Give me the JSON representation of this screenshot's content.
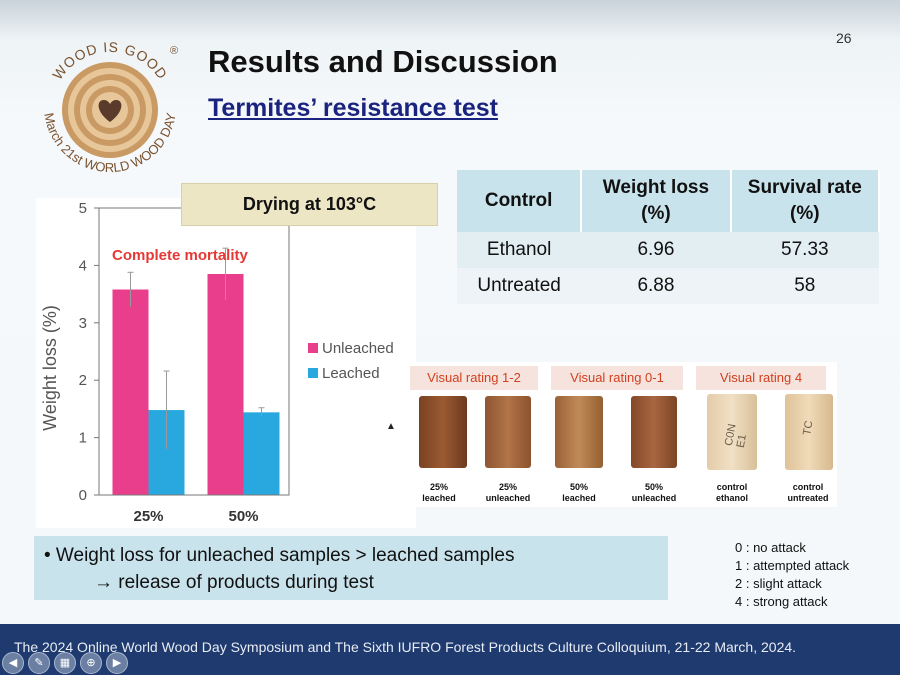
{
  "slide": {
    "page_number": "26",
    "title": "Results and Discussion",
    "subtitle": "Termites’ resistance test",
    "logo": {
      "top_text": "WOOD IS GOOD",
      "registered": "®",
      "bottom_text": "March 21st WORLD WOOD DAY"
    }
  },
  "drying_label": "Drying at 103°C",
  "chart_data": {
    "type": "bar",
    "categories": [
      "25%",
      "50%"
    ],
    "series": [
      {
        "name": "Unleached",
        "values": [
          3.58,
          3.85
        ],
        "errors": [
          0.3,
          0.45
        ],
        "color": "#e83e8c"
      },
      {
        "name": "Leached",
        "values": [
          1.48,
          1.44
        ],
        "errors": [
          0.68,
          0.08
        ],
        "color": "#29a8df"
      }
    ],
    "ylabel": "Weight loss (%)",
    "ylim": [
      0,
      5
    ],
    "yticks": [
      "0",
      "1",
      "2",
      "3",
      "4",
      "5"
    ],
    "annotation": "Complete mortality",
    "legend_position": "right"
  },
  "table": {
    "headers": [
      "Control",
      "Weight loss (%)",
      "Survival rate (%)"
    ],
    "rows": [
      [
        "Ethanol",
        "6.96",
        "57.33"
      ],
      [
        "Untreated",
        "6.88",
        "58"
      ]
    ]
  },
  "photos": {
    "ratings": [
      "Visual rating 1-2",
      "Visual rating 0-1",
      "Visual rating 4"
    ],
    "captions": [
      [
        "25%",
        "leached"
      ],
      [
        "25%",
        "unleached"
      ],
      [
        "50%",
        "leached"
      ],
      [
        "50%",
        "unleached"
      ],
      [
        "control",
        "ethanol"
      ],
      [
        "control",
        "untreated"
      ]
    ],
    "marks": [
      "C0N E1",
      "TC"
    ]
  },
  "bullet": {
    "line1": "•  Weight loss for unleached samples > leached samples",
    "line2": "→ release of products during test"
  },
  "rating_key": [
    "0 : no attack",
    "1 : attempted attack",
    "2 : slight attack",
    "4 : strong attack"
  ],
  "footer": {
    "text": "The 2024 Online World Wood Day Symposium and The Sixth IUFRO Forest Products Culture Colloquium, 21-22 March, 2024."
  },
  "controls": {
    "icons": [
      "prev-arrow-icon",
      "pen-icon",
      "slides-icon",
      "zoom-icon",
      "next-arrow-icon"
    ]
  },
  "colors": {
    "accent_blue": "#1a237e",
    "panel_blue": "#c9e3ec",
    "footer_bg": "#1e3a6e",
    "rating_red": "#d1401f"
  }
}
